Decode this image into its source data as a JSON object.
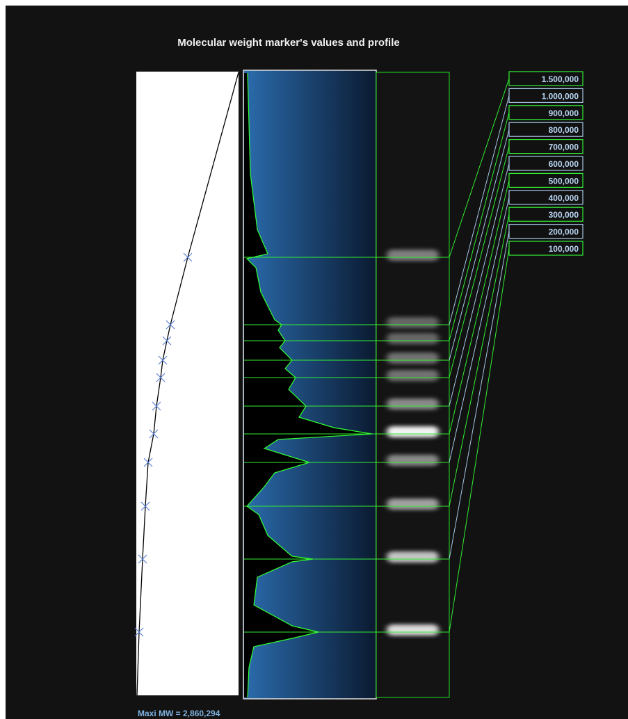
{
  "title": "Molecular weight marker's values and profile",
  "markers": [
    "1.500,000",
    "1.000,000",
    "900,000",
    "800,000",
    "700,000",
    "600,000",
    "500,000",
    "400,000",
    "300,000",
    "200,000",
    "100,000"
  ],
  "footer": "Maxi MW = 2,860,294"
}
